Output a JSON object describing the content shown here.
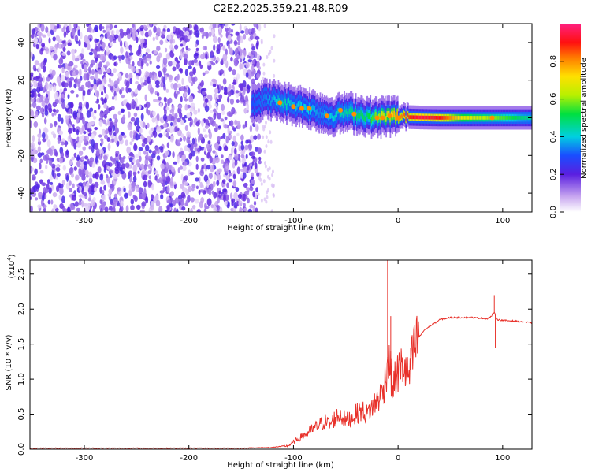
{
  "title": "C2E2.2025.359.21.48.R09",
  "chart_data": [
    {
      "type": "heatmap",
      "xlabel": "Height of straight line (km)",
      "ylabel": "Frequency (Hz)",
      "xlim": [
        -352,
        128
      ],
      "ylim": [
        -50,
        50
      ],
      "x_ticks": [
        -300,
        -200,
        -100,
        0,
        100
      ],
      "x_tick_labels": [
        "-300",
        "-200",
        "-100",
        "0",
        "100"
      ],
      "y_ticks": [
        -40,
        -20,
        0,
        20,
        40
      ],
      "y_tick_labels": [
        "-40",
        "-20",
        "0",
        "20",
        "40"
      ],
      "noise_region": {
        "x": [
          -352,
          -132
        ],
        "y": [
          -50,
          50
        ],
        "level": 0.1
      },
      "signal_track": [
        {
          "x": -140,
          "f": 8,
          "amp": 0.3
        },
        {
          "x": -125,
          "f": 10,
          "amp": 0.35
        },
        {
          "x": -110,
          "f": 8,
          "amp": 0.45
        },
        {
          "x": -100,
          "f": 7,
          "amp": 0.4
        },
        {
          "x": -85,
          "f": 5,
          "amp": 0.4
        },
        {
          "x": -75,
          "f": 3,
          "amp": 0.35
        },
        {
          "x": -65,
          "f": 1,
          "amp": 0.4
        },
        {
          "x": -50,
          "f": 3,
          "amp": 0.45
        },
        {
          "x": -40,
          "f": 2,
          "amp": 0.5
        },
        {
          "x": -30,
          "f": 1,
          "amp": 0.5
        },
        {
          "x": -20,
          "f": 0,
          "amp": 0.6
        },
        {
          "x": -10,
          "f": 1,
          "amp": 0.7
        },
        {
          "x": 0,
          "f": 0.5,
          "amp": 0.8
        },
        {
          "x": 20,
          "f": 0.2,
          "amp": 0.95
        },
        {
          "x": 40,
          "f": 0,
          "amp": 0.9
        },
        {
          "x": 60,
          "f": 0,
          "amp": 0.7
        },
        {
          "x": 90,
          "f": 0,
          "amp": 0.6
        },
        {
          "x": 128,
          "f": 0,
          "amp": 0.45
        }
      ],
      "colorbar": {
        "label": "Normalized spectral amplitude",
        "range": [
          0,
          1
        ],
        "ticks": [
          0.0,
          0.2,
          0.4,
          0.6,
          0.8
        ],
        "tick_labels": [
          "0.0",
          "0.2",
          "0.4",
          "0.6",
          "0.8"
        ]
      }
    },
    {
      "type": "line",
      "xlabel": "Height of straight line (km)",
      "ylabel": "SNR (10 * v/v)",
      "y_multiplier_label": "(x10",
      "y_multiplier_exp": "4",
      "y_multiplier_close": ")",
      "xlim": [
        -352,
        128
      ],
      "ylim": [
        0,
        2.7
      ],
      "x_ticks": [
        -300,
        -200,
        -100,
        0,
        100
      ],
      "x_tick_labels": [
        "-300",
        "-200",
        "-100",
        "0",
        "100"
      ],
      "y_ticks": [
        0.0,
        0.5,
        1.0,
        1.5,
        2.0,
        2.5
      ],
      "y_tick_labels": [
        "0.0",
        "0.5",
        "1.0",
        "1.5",
        "2.0",
        "2.5"
      ],
      "color": "#e8312a",
      "series": [
        {
          "x": [
            -352,
            -300,
            -250,
            -200,
            -150,
            -120,
            -105,
            -100,
            -95,
            -90,
            -85,
            -80,
            -75,
            -70,
            -65,
            -60,
            -55,
            -50,
            -45,
            -40,
            -35,
            -30,
            -25,
            -20,
            -15,
            -12,
            -10,
            -8,
            -5,
            0,
            5,
            10,
            15,
            20,
            25,
            30,
            35,
            40,
            50,
            60,
            70,
            80,
            85,
            90,
            92,
            95,
            100,
            110,
            120,
            128
          ],
          "y": [
            0.01,
            0.01,
            0.01,
            0.01,
            0.01,
            0.02,
            0.05,
            0.1,
            0.15,
            0.2,
            0.25,
            0.3,
            0.35,
            0.4,
            0.35,
            0.45,
            0.5,
            0.4,
            0.45,
            0.5,
            0.55,
            0.5,
            0.6,
            0.7,
            0.8,
            1.0,
            1.3,
            1.2,
            0.9,
            1.1,
            1.2,
            1.0,
            1.4,
            1.6,
            1.7,
            1.75,
            1.8,
            1.85,
            1.88,
            1.88,
            1.88,
            1.87,
            1.86,
            1.9,
            1.95,
            1.85,
            1.84,
            1.83,
            1.82,
            1.8
          ]
        }
      ],
      "spikes": [
        {
          "x": -10,
          "y": 2.7
        },
        {
          "x": -7,
          "y": 1.9
        },
        {
          "x": 12,
          "y": 1.45
        },
        {
          "x": 92,
          "y": 2.2
        },
        {
          "x": 93,
          "y": 1.45
        }
      ]
    }
  ]
}
